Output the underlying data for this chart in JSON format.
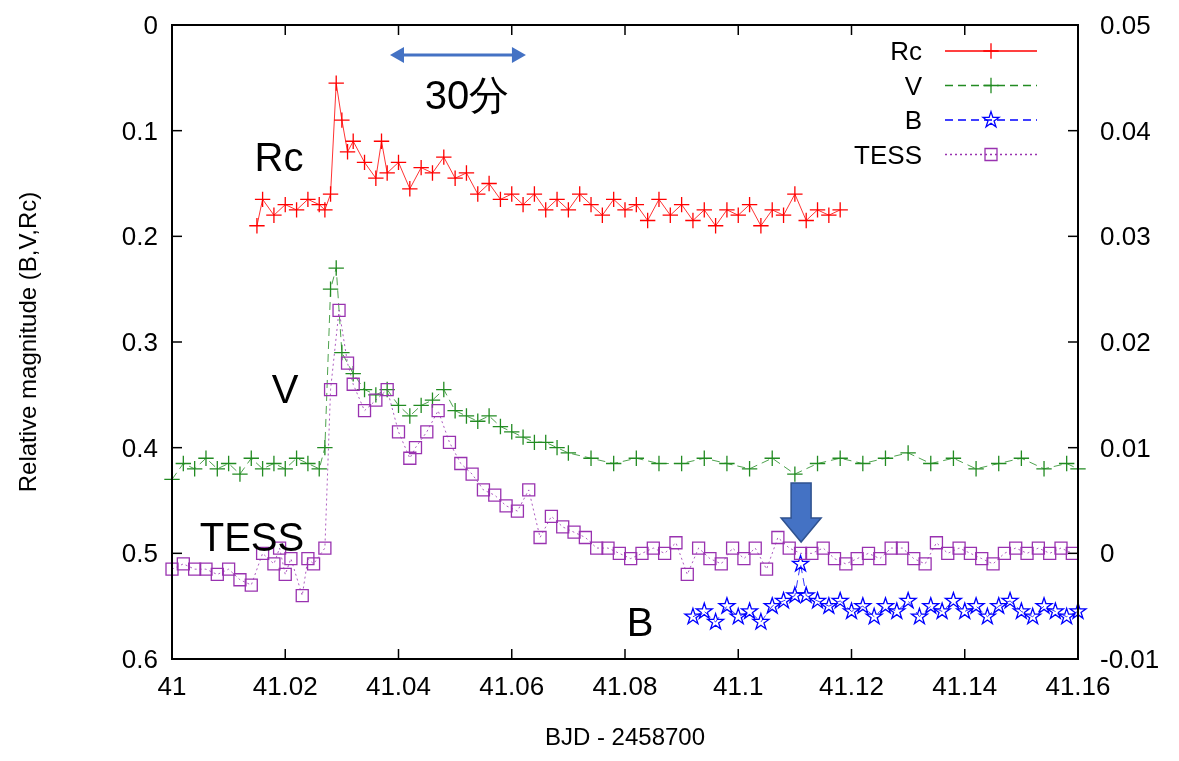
{
  "chart_data": {
    "type": "line",
    "xlabel": "BJD - 2458700",
    "ylabel": "Relative magnitude (B,V,Rc)",
    "xlim": [
      41,
      41.16
    ],
    "xticks": [
      41,
      41.02,
      41.04,
      41.06,
      41.08,
      41.1,
      41.12,
      41.14,
      41.16
    ],
    "ylim": [
      0.6,
      0
    ],
    "yticks": [
      0,
      0.1,
      0.2,
      0.3,
      0.4,
      0.5,
      0.6
    ],
    "y2lim": [
      -0.01,
      0.05
    ],
    "y2ticks": [
      -0.01,
      0,
      0.01,
      0.02,
      0.03,
      0.04,
      0.05
    ],
    "grid": false,
    "legend": "top right",
    "annotations": [
      "Rc",
      "V",
      "TESS",
      "B",
      "30分"
    ],
    "series": [
      {
        "name": "Rc",
        "color": "#ff0000",
        "marker": "cross",
        "line_style": "solid",
        "x": [
          41.015,
          41.016,
          41.018,
          41.02,
          41.022,
          41.024,
          41.026,
          41.027,
          41.028,
          41.029,
          41.03,
          41.031,
          41.032,
          41.034,
          41.036,
          41.037,
          41.038,
          41.04,
          41.042,
          41.044,
          41.046,
          41.048,
          41.05,
          41.052,
          41.054,
          41.056,
          41.058,
          41.06,
          41.062,
          41.064,
          41.066,
          41.068,
          41.07,
          41.072,
          41.074,
          41.076,
          41.078,
          41.08,
          41.082,
          41.084,
          41.086,
          41.088,
          41.09,
          41.092,
          41.094,
          41.096,
          41.098,
          41.1,
          41.102,
          41.104,
          41.106,
          41.108,
          41.11,
          41.112,
          41.114,
          41.116,
          41.118
        ],
        "values": [
          0.19,
          0.165,
          0.18,
          0.17,
          0.175,
          0.165,
          0.17,
          0.175,
          0.16,
          0.055,
          0.09,
          0.12,
          0.11,
          0.13,
          0.145,
          0.11,
          0.14,
          0.13,
          0.155,
          0.135,
          0.14,
          0.125,
          0.145,
          0.14,
          0.16,
          0.15,
          0.165,
          0.16,
          0.17,
          0.16,
          0.175,
          0.165,
          0.175,
          0.16,
          0.17,
          0.18,
          0.165,
          0.175,
          0.17,
          0.185,
          0.165,
          0.18,
          0.17,
          0.185,
          0.175,
          0.19,
          0.175,
          0.18,
          0.17,
          0.19,
          0.175,
          0.18,
          0.16,
          0.185,
          0.175,
          0.18,
          0.175
        ]
      },
      {
        "name": "V",
        "color": "#228b22",
        "marker": "cross",
        "line_style": "dashed",
        "x": [
          41,
          41.002,
          41.004,
          41.006,
          41.008,
          41.01,
          41.012,
          41.014,
          41.016,
          41.018,
          41.02,
          41.022,
          41.024,
          41.026,
          41.027,
          41.028,
          41.029,
          41.03,
          41.032,
          41.034,
          41.036,
          41.038,
          41.04,
          41.042,
          41.044,
          41.046,
          41.048,
          41.05,
          41.052,
          41.054,
          41.056,
          41.058,
          41.06,
          41.062,
          41.064,
          41.066,
          41.068,
          41.07,
          41.074,
          41.078,
          41.082,
          41.086,
          41.09,
          41.094,
          41.098,
          41.102,
          41.106,
          41.11,
          41.114,
          41.118,
          41.122,
          41.126,
          41.13,
          41.134,
          41.138,
          41.142,
          41.146,
          41.15,
          41.154,
          41.158,
          41.16
        ],
        "values": [
          0.43,
          0.415,
          0.42,
          0.41,
          0.42,
          0.415,
          0.425,
          0.41,
          0.42,
          0.415,
          0.42,
          0.41,
          0.415,
          0.42,
          0.4,
          0.25,
          0.23,
          0.31,
          0.33,
          0.345,
          0.35,
          0.345,
          0.36,
          0.37,
          0.36,
          0.355,
          0.345,
          0.365,
          0.37,
          0.375,
          0.37,
          0.38,
          0.385,
          0.39,
          0.395,
          0.395,
          0.4,
          0.405,
          0.41,
          0.415,
          0.41,
          0.415,
          0.415,
          0.41,
          0.415,
          0.42,
          0.41,
          0.425,
          0.415,
          0.41,
          0.415,
          0.41,
          0.405,
          0.415,
          0.41,
          0.42,
          0.415,
          0.41,
          0.42,
          0.415,
          0.42
        ]
      },
      {
        "name": "B",
        "color": "#0000ff",
        "marker": "star",
        "line_style": "dashed",
        "x": [
          41.092,
          41.094,
          41.096,
          41.098,
          41.1,
          41.102,
          41.104,
          41.106,
          41.108,
          41.11,
          41.111,
          41.112,
          41.114,
          41.116,
          41.118,
          41.12,
          41.122,
          41.124,
          41.126,
          41.128,
          41.13,
          41.132,
          41.134,
          41.136,
          41.138,
          41.14,
          41.142,
          41.144,
          41.146,
          41.148,
          41.15,
          41.152,
          41.154,
          41.156,
          41.158,
          41.16
        ],
        "values": [
          0.56,
          0.555,
          0.565,
          0.55,
          0.56,
          0.555,
          0.565,
          0.55,
          0.545,
          0.54,
          0.51,
          0.54,
          0.545,
          0.55,
          0.545,
          0.555,
          0.55,
          0.56,
          0.55,
          0.555,
          0.545,
          0.56,
          0.55,
          0.555,
          0.545,
          0.555,
          0.55,
          0.56,
          0.55,
          0.545,
          0.555,
          0.56,
          0.55,
          0.555,
          0.56,
          0.555
        ]
      },
      {
        "name": "TESS",
        "color": "#9932b0",
        "marker": "square",
        "line_style": "dotted",
        "axis": "y2",
        "x": [
          41,
          41.002,
          41.004,
          41.006,
          41.008,
          41.01,
          41.012,
          41.014,
          41.016,
          41.018,
          41.019,
          41.02,
          41.021,
          41.023,
          41.024,
          41.025,
          41.027,
          41.028,
          41.0295,
          41.031,
          41.032,
          41.034,
          41.036,
          41.038,
          41.04,
          41.042,
          41.043,
          41.045,
          41.047,
          41.049,
          41.051,
          41.053,
          41.055,
          41.057,
          41.059,
          41.061,
          41.063,
          41.065,
          41.067,
          41.069,
          41.071,
          41.073,
          41.075,
          41.077,
          41.079,
          41.081,
          41.083,
          41.085,
          41.087,
          41.089,
          41.091,
          41.093,
          41.095,
          41.097,
          41.099,
          41.101,
          41.103,
          41.105,
          41.107,
          41.109,
          41.111,
          41.113,
          41.115,
          41.117,
          41.119,
          41.121,
          41.123,
          41.125,
          41.127,
          41.129,
          41.131,
          41.133,
          41.135,
          41.137,
          41.139,
          41.141,
          41.143,
          41.145,
          41.147,
          41.149,
          41.151,
          41.153,
          41.155,
          41.157,
          41.159
        ],
        "values": [
          -0.0015,
          -0.001,
          -0.0015,
          -0.0015,
          -0.002,
          -0.0015,
          -0.0025,
          -0.003,
          0,
          -0.001,
          0.0005,
          -0.002,
          -0.0005,
          -0.004,
          -0.0005,
          -0.001,
          0.0005,
          0.0155,
          0.023,
          0.018,
          0.016,
          0.0135,
          0.0145,
          0.0155,
          0.0115,
          0.009,
          0.01,
          0.0115,
          0.0135,
          0.0105,
          0.0085,
          0.0075,
          0.006,
          0.0055,
          0.0045,
          0.004,
          0.006,
          0.0015,
          0.0035,
          0.0025,
          0.002,
          0.0015,
          0.0005,
          0.0005,
          0,
          -0.0005,
          0,
          0.0005,
          0,
          0.001,
          -0.002,
          0.0005,
          -0.0005,
          -0.001,
          0.0005,
          -0.0005,
          0.0005,
          -0.0015,
          0.0015,
          0.0005,
          0,
          0,
          0.0005,
          -0.0005,
          -0.001,
          -0.0005,
          0,
          -0.0005,
          0.0005,
          0.0005,
          -0.0005,
          -0.001,
          0.001,
          0,
          0.0005,
          0,
          -0.0005,
          -0.001,
          0,
          0.0005,
          0,
          0.0005,
          0,
          0.0005,
          0
        ]
      }
    ]
  }
}
